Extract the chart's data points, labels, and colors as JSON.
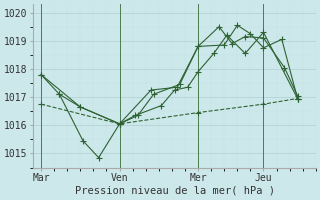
{
  "xlabel": "Pression niveau de la mer( hPa )",
  "bg_color": "#cde8eb",
  "grid_color_major": "#b8d8dc",
  "grid_color_minor": "#d8eef0",
  "line_color": "#2d6232",
  "vline_color": "#3a6e3a",
  "ylim": [
    1014.5,
    1020.3
  ],
  "ytick_positions": [
    1015,
    1016,
    1017,
    1018,
    1019,
    1020
  ],
  "xtick_labels": [
    "Mar",
    "Ven",
    "Mer",
    "Jeu"
  ],
  "xtick_positions": [
    0,
    3,
    6,
    8.5
  ],
  "vline_positions": [
    0,
    3,
    6,
    8.5
  ],
  "xlim": [
    -0.3,
    10.5
  ],
  "line1": {
    "x": [
      0.0,
      0.7,
      1.5,
      3.0,
      4.2,
      5.2,
      6.0,
      7.0,
      7.5,
      8.0,
      8.5,
      9.2,
      9.8
    ],
    "y": [
      1017.8,
      1017.1,
      1016.65,
      1016.05,
      1017.25,
      1017.35,
      1018.8,
      1018.85,
      1019.55,
      1019.25,
      1018.75,
      1019.05,
      1016.95
    ],
    "ls": "-"
  },
  "line2": {
    "x": [
      0.0,
      1.5,
      3.0,
      3.7,
      4.3,
      5.3,
      6.0,
      6.8,
      7.3,
      7.8,
      8.5,
      9.3,
      9.8
    ],
    "y": [
      1017.8,
      1016.65,
      1016.05,
      1016.35,
      1017.1,
      1017.45,
      1018.8,
      1019.5,
      1018.9,
      1019.15,
      1019.1,
      1018.05,
      1017.05
    ],
    "ls": "-"
  },
  "line3": {
    "x": [
      0.7,
      1.6,
      2.2,
      3.0,
      3.6,
      4.6,
      5.1,
      5.6,
      6.0,
      6.6,
      7.1,
      7.8,
      8.5,
      9.8
    ],
    "y": [
      1017.1,
      1015.45,
      1014.85,
      1016.05,
      1016.35,
      1016.7,
      1017.25,
      1017.35,
      1017.9,
      1018.55,
      1019.2,
      1018.55,
      1019.3,
      1016.95
    ],
    "ls": "-"
  },
  "line4": {
    "x": [
      0.0,
      3.0,
      6.0,
      8.5,
      9.8
    ],
    "y": [
      1016.75,
      1016.05,
      1016.45,
      1016.75,
      1016.95
    ],
    "ls": "--"
  }
}
